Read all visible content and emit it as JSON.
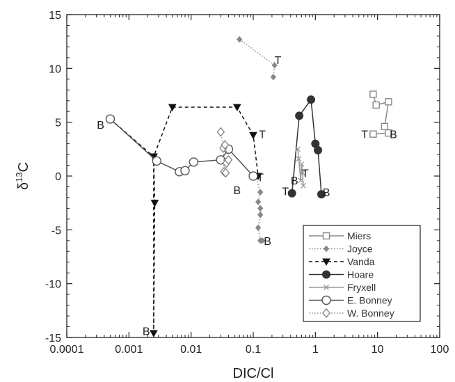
{
  "chart_data": {
    "type": "scatter",
    "title": "",
    "xlabel": "DIC/Cl",
    "ylabel": {
      "main": "δ",
      "sup": "13",
      "after": "C"
    },
    "xscale": "log",
    "xlim": [
      0.0001,
      100
    ],
    "ylim": [
      -15,
      15
    ],
    "x_ticks": [
      "0.0001",
      "0.001",
      "0.01",
      "0.1",
      "1",
      "10",
      "100"
    ],
    "y_ticks": [
      "-15",
      "-10",
      "-5",
      "0",
      "5",
      "10",
      "15"
    ],
    "grid": false,
    "legend_position": "bottom-right",
    "series": [
      {
        "name": "Miers",
        "marker": "square",
        "line": "solid",
        "color": "#888888",
        "x": [
          8.5,
          9.5,
          15,
          13,
          15,
          8.5
        ],
        "y": [
          7.6,
          6.6,
          6.9,
          4.6,
          4.0,
          3.9
        ]
      },
      {
        "name": "Joyce",
        "marker": "diamond-filled",
        "line": "dotted",
        "color": "#888888",
        "x": [
          0.06,
          0.22,
          0.21
        ],
        "y": [
          12.7,
          10.3,
          9.2
        ]
      },
      {
        "name": "Joyce",
        "legend": false,
        "marker": "diamond-filled",
        "line": "dotted",
        "color": "#888888",
        "x": [
          0.11,
          0.13,
          0.12,
          0.13,
          0.13,
          0.12,
          0.13,
          0.14
        ],
        "y": [
          0.0,
          -1.5,
          -2.4,
          -3.0,
          -3.6,
          -4.8,
          -6.0,
          -6.0
        ]
      },
      {
        "name": "Vanda",
        "marker": "triangle-down",
        "line": "dashed",
        "color": "#111111",
        "x": [
          0.0005,
          0.0025,
          0.0026,
          0.0025,
          0.0025,
          0.005,
          0.055,
          0.1,
          0.12
        ],
        "y": [
          5.3,
          1.8,
          -2.5,
          -14.6,
          1.8,
          6.4,
          6.4,
          3.8,
          0.0
        ]
      },
      {
        "name": "Hoare",
        "marker": "circle-filled",
        "line": "solid",
        "color": "#333333",
        "x": [
          0.42,
          0.55,
          0.85,
          1.0,
          1.1,
          1.25
        ],
        "y": [
          -1.6,
          5.6,
          7.1,
          3.0,
          2.4,
          -1.7
        ]
      },
      {
        "name": "Fryxell",
        "marker": "x",
        "line": "solid",
        "color": "#999999",
        "x": [
          0.52,
          0.54,
          0.58,
          0.6,
          0.62,
          0.64
        ],
        "y": [
          2.5,
          1.6,
          -0.4,
          1.1,
          0.3,
          -0.9
        ]
      },
      {
        "name": "E. Bonney",
        "marker": "circle-open",
        "line": "solid",
        "color": "#555555",
        "x": [
          0.0005,
          0.0028,
          0.0065,
          0.008,
          0.011,
          0.03,
          0.04,
          0.1
        ],
        "y": [
          5.3,
          1.4,
          0.4,
          0.5,
          1.3,
          1.5,
          2.5,
          0.0
        ]
      },
      {
        "name": "W. Bonney",
        "marker": "diamond-open",
        "line": "dotted",
        "color": "#888888",
        "x": [
          0.03,
          0.033,
          0.034,
          0.036,
          0.037,
          0.04,
          0.035
        ],
        "y": [
          4.1,
          2.6,
          0.4,
          0.3,
          1.2,
          1.5,
          2.9
        ]
      }
    ],
    "annotations": [
      {
        "text": "T",
        "x": 0.25,
        "y": 10.8
      },
      {
        "text": "T",
        "x": 0.14,
        "y": 3.9
      },
      {
        "text": "T",
        "x": 0.13,
        "y": -0.1
      },
      {
        "text": "B",
        "x": 0.00035,
        "y": 4.8
      },
      {
        "text": "B",
        "x": 0.055,
        "y": -1.3
      },
      {
        "text": "B",
        "x": 0.17,
        "y": -6.0
      },
      {
        "text": "B",
        "x": 0.0019,
        "y": -14.4
      },
      {
        "text": "T",
        "x": 0.33,
        "y": -1.4
      },
      {
        "text": "B",
        "x": 0.46,
        "y": -0.4
      },
      {
        "text": "T",
        "x": 0.69,
        "y": 0.3
      },
      {
        "text": "B",
        "x": 1.5,
        "y": -1.5
      },
      {
        "text": "T",
        "x": 6.2,
        "y": 3.9
      },
      {
        "text": "B",
        "x": 18,
        "y": 3.9
      }
    ]
  }
}
